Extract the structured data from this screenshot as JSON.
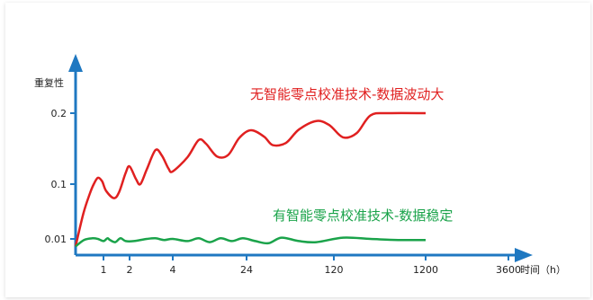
{
  "chart_data": {
    "type": "line",
    "xlabel": "时间（h）",
    "ylabel": "重复性",
    "x_ticks": [
      "1",
      "2",
      "4",
      "24",
      "120",
      "1200",
      "3600"
    ],
    "y_ticks": [
      "0.01",
      "0.1",
      "0.2"
    ],
    "y_tick_values": [
      0.01,
      0.1,
      0.2
    ],
    "ylim": [
      0,
      0.2
    ],
    "grid": false,
    "legend": "annotations",
    "series": [
      {
        "name": "无智能零点校准技术-数据波动大",
        "color": "#e02020",
        "points": [
          [
            0,
            0.003
          ],
          [
            0.28,
            0.052
          ],
          [
            0.5,
            0.083
          ],
          [
            0.65,
            0.1
          ],
          [
            0.8,
            0.109
          ],
          [
            0.95,
            0.104
          ],
          [
            1.1,
            0.089
          ],
          [
            1.4,
            0.077
          ],
          [
            1.6,
            0.087
          ],
          [
            1.85,
            0.116
          ],
          [
            2.0,
            0.125
          ],
          [
            2.15,
            0.107
          ],
          [
            2.25,
            0.1
          ],
          [
            2.4,
            0.121
          ],
          [
            2.6,
            0.148
          ],
          [
            2.75,
            0.14
          ],
          [
            2.9,
            0.122
          ],
          [
            3.0,
            0.118
          ],
          [
            3.2,
            0.138
          ],
          [
            3.35,
            0.162
          ],
          [
            3.45,
            0.157
          ],
          [
            3.6,
            0.139
          ],
          [
            3.75,
            0.141
          ],
          [
            3.9,
            0.165
          ],
          [
            4.05,
            0.176
          ],
          [
            4.2,
            0.167
          ],
          [
            4.3,
            0.155
          ],
          [
            4.45,
            0.158
          ],
          [
            4.6,
            0.177
          ],
          [
            4.8,
            0.189
          ],
          [
            4.95,
            0.183
          ],
          [
            5.1,
            0.166
          ],
          [
            5.25,
            0.172
          ],
          [
            5.4,
            0.197
          ],
          [
            5.6,
            0.2
          ],
          [
            6.0,
            0.2
          ]
        ]
      },
      {
        "name": "有智能零点校准技术-数据稳定",
        "color": "#1aa34a",
        "points": [
          [
            0,
            0.003
          ],
          [
            0.3,
            0.009
          ],
          [
            0.6,
            0.011
          ],
          [
            0.8,
            0.01
          ],
          [
            1.0,
            0.008
          ],
          [
            1.15,
            0.011
          ],
          [
            1.25,
            0.009
          ],
          [
            1.45,
            0.007
          ],
          [
            1.65,
            0.011
          ],
          [
            1.85,
            0.008
          ],
          [
            2.1,
            0.008
          ],
          [
            2.4,
            0.01
          ],
          [
            2.6,
            0.011
          ],
          [
            2.8,
            0.009
          ],
          [
            3.0,
            0.01
          ],
          [
            3.2,
            0.008
          ],
          [
            3.35,
            0.011
          ],
          [
            3.5,
            0.007
          ],
          [
            3.65,
            0.011
          ],
          [
            3.8,
            0.008
          ],
          [
            3.95,
            0.011
          ],
          [
            4.1,
            0.008
          ],
          [
            4.25,
            0.006
          ],
          [
            4.4,
            0.012
          ],
          [
            4.6,
            0.008
          ],
          [
            4.8,
            0.007
          ],
          [
            5.1,
            0.012
          ],
          [
            5.4,
            0.01
          ],
          [
            5.7,
            0.009
          ],
          [
            6.0,
            0.009
          ]
        ]
      }
    ]
  }
}
